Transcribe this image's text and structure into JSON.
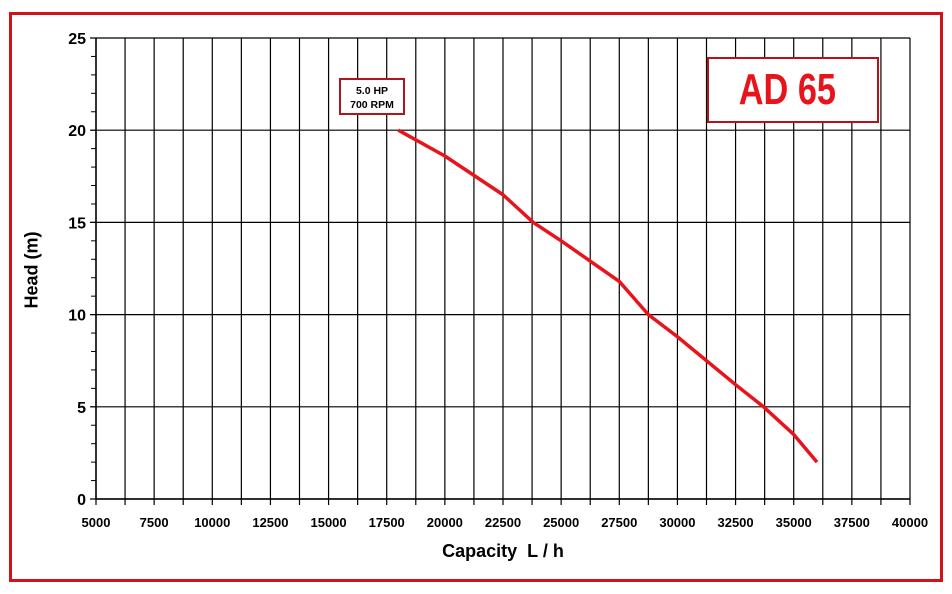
{
  "chart_data": {
    "type": "line",
    "title": "AD 65",
    "xlabel": "Capacity  L / h",
    "ylabel": "Head (m)",
    "xlim": [
      5000,
      40000
    ],
    "ylim": [
      0,
      25
    ],
    "x_ticks": [
      5000,
      7500,
      10000,
      12500,
      15000,
      17500,
      20000,
      22500,
      25000,
      27500,
      30000,
      32500,
      35000,
      37500,
      40000
    ],
    "y_ticks": [
      0,
      5,
      10,
      15,
      20,
      25
    ],
    "grid": true,
    "legend": null,
    "annotation": "5.0 HP\n700 RPM",
    "series": [
      {
        "name": "5.0 HP 700 RPM",
        "color": "#e8141c",
        "x": [
          18000,
          20000,
          22500,
          23800,
          25000,
          27500,
          28750,
          30000,
          32500,
          33700,
          35000,
          36000
        ],
        "y": [
          20,
          18.6,
          16.5,
          15,
          14,
          11.8,
          10,
          8.8,
          6.2,
          5,
          3.5,
          2
        ]
      }
    ]
  },
  "chart": {
    "title": "AD 65",
    "annotation_line1": "5.0 HP",
    "annotation_line2": "700 RPM",
    "xlabel": "Capacity  L / h",
    "ylabel": "Head (m)",
    "border_color": "#d0121b",
    "curve_color": "#e8141c"
  }
}
